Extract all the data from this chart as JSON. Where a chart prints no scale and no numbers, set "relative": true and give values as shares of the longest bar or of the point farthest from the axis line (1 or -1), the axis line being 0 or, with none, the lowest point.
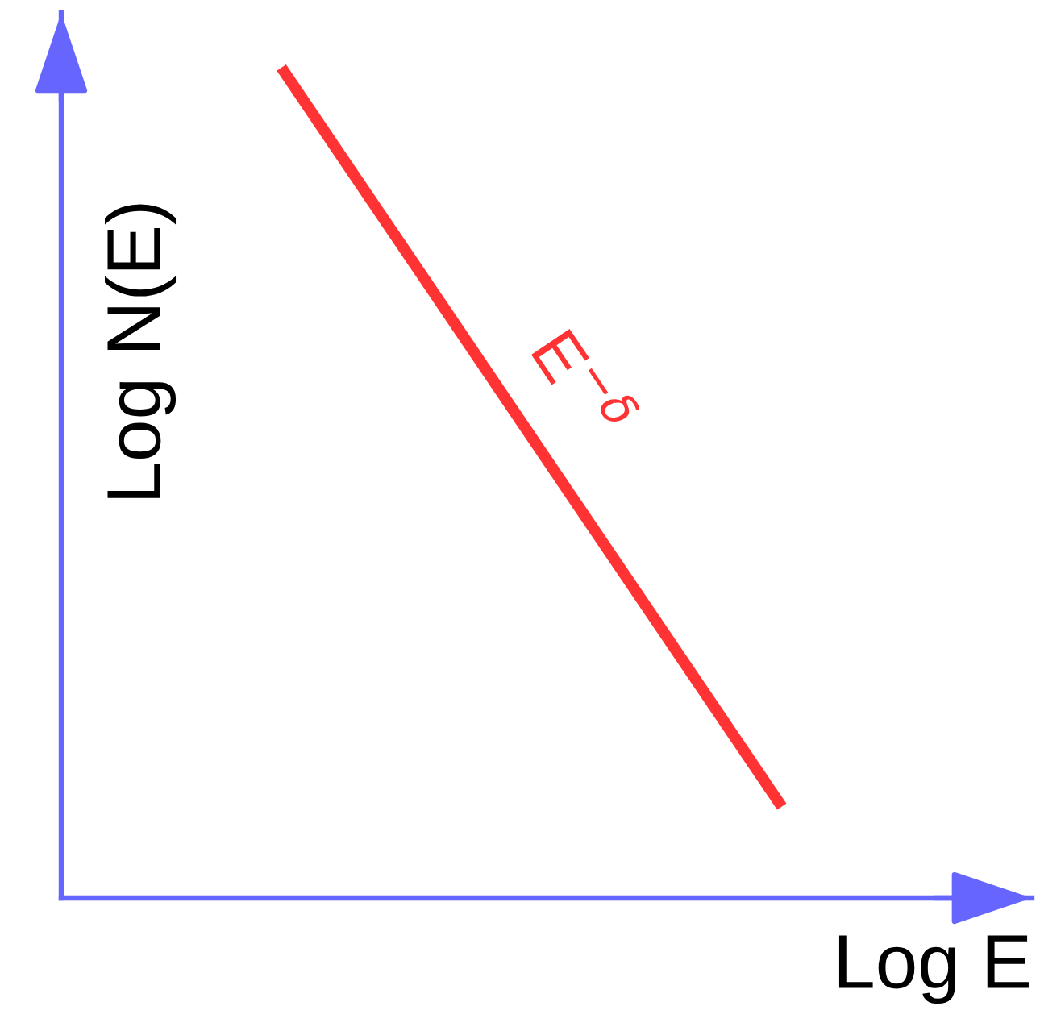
{
  "chart_data": {
    "type": "line",
    "xlabel": "Log E",
    "ylabel": "Log N(E)",
    "relative": true,
    "categories": [
      null,
      null
    ],
    "series": [
      {
        "name": "E$^{−δ}$",
        "color": "#ff3333",
        "values": [
          1,
          0.11
        ]
      }
    ]
  }
}
